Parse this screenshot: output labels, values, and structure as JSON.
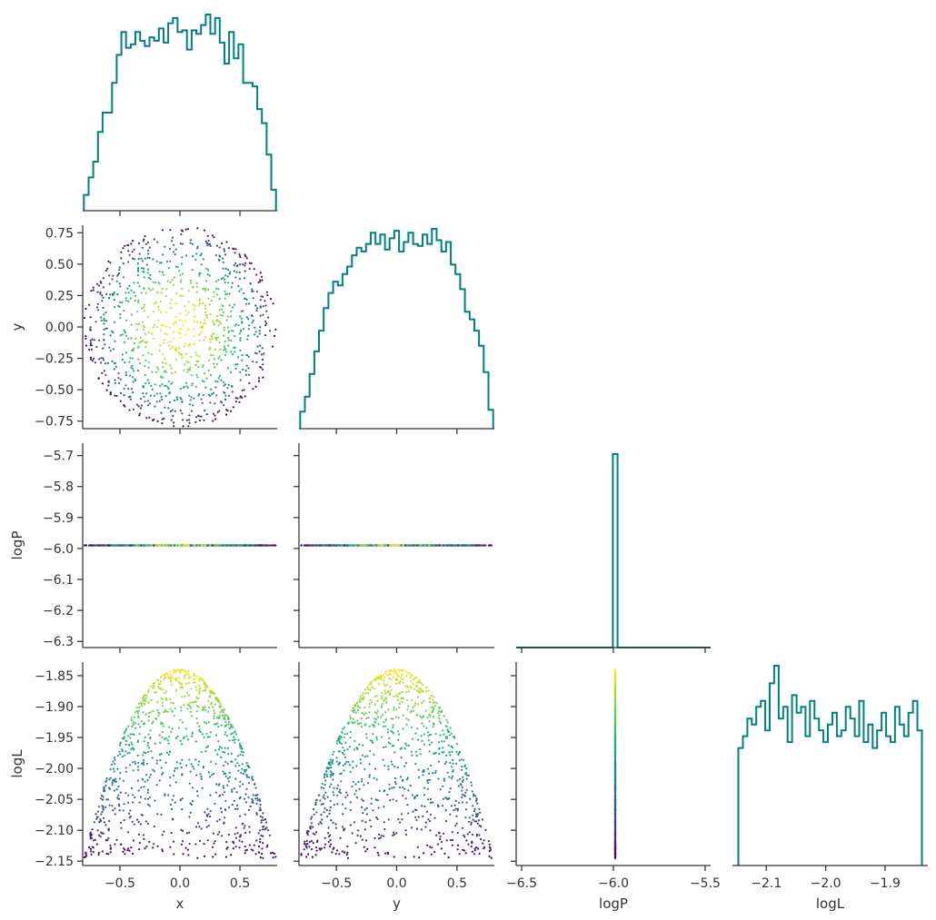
{
  "chart_data": {
    "type": "corner-plot",
    "parameters": [
      "x",
      "y",
      "logP",
      "logL"
    ],
    "n_samples": 1000,
    "colormap": "viridis",
    "color_by": "logL",
    "histogram_color": "#008080",
    "histogram_style": "step",
    "grid": false,
    "axes": {
      "x": {
        "label": "x",
        "range": [
          -0.81,
          0.81
        ],
        "ticks": [
          "−0.5",
          "0.0",
          "0.5"
        ],
        "tick_values": [
          -0.5,
          0.0,
          0.5
        ]
      },
      "y": {
        "label": "y",
        "range": [
          -0.81,
          0.81
        ],
        "ticks": [
          "−0.75",
          "−0.50",
          "−0.25",
          "0.00",
          "0.25",
          "0.50",
          "0.75"
        ],
        "tick_values": [
          -0.75,
          -0.5,
          -0.25,
          0.0,
          0.25,
          0.5,
          0.75
        ],
        "ticks_bottom": [
          "−0.5",
          "0.0",
          "0.5"
        ],
        "tick_values_bottom": [
          -0.5,
          0.0,
          0.5
        ]
      },
      "logP": {
        "label": "logP",
        "range": [
          -6.32,
          -5.66
        ],
        "ticks": [
          "−5.7",
          "−5.8",
          "−5.9",
          "−6.0",
          "−6.1",
          "−6.2",
          "−6.3"
        ],
        "tick_values": [
          -5.7,
          -5.8,
          -5.9,
          -6.0,
          -6.1,
          -6.2,
          -6.3
        ],
        "ticks_bottom": [
          "−6.5",
          "−6.0",
          "−5.5"
        ],
        "tick_values_bottom": [
          -6.5,
          -6.0,
          -5.5
        ],
        "range_bottom": [
          -6.53,
          -5.47
        ],
        "value": -5.99
      },
      "logL": {
        "label": "logL",
        "range": [
          -2.157,
          -1.828
        ],
        "ticks": [
          "−1.85",
          "−1.90",
          "−1.95",
          "−2.00",
          "−2.05",
          "−2.10",
          "−2.15"
        ],
        "tick_values": [
          -1.85,
          -1.9,
          -1.95,
          -2.0,
          -2.05,
          -2.1,
          -2.15
        ],
        "ticks_bottom": [
          "−2.1",
          "−2.0",
          "−1.9"
        ],
        "tick_values_bottom": [
          -2.1,
          -2.0,
          -1.9
        ],
        "range_bottom": [
          -2.157,
          -1.828
        ]
      }
    },
    "histograms": {
      "x": {
        "bins": 41,
        "range": [
          -0.8,
          0.8
        ],
        "counts": [
          9,
          19,
          28,
          45,
          56,
          56,
          73,
          89,
          102,
          93,
          95,
          102,
          97,
          94,
          99,
          97,
          104,
          96,
          107,
          110,
          102,
          103,
          92,
          103,
          101,
          106,
          112,
          101,
          110,
          96,
          84,
          102,
          87,
          95,
          73,
          73,
          71,
          58,
          50,
          32,
          12
        ]
      },
      "y": {
        "bins": 41,
        "range": [
          -0.8,
          0.8
        ],
        "counts": [
          9,
          17,
          29,
          41,
          52,
          64,
          72,
          78,
          76,
          82,
          86,
          92,
          96,
          94,
          98,
          104,
          98,
          103,
          95,
          101,
          105,
          94,
          99,
          104,
          98,
          97,
          103,
          98,
          106,
          100,
          94,
          99,
          87,
          82,
          74,
          62,
          58,
          52,
          44,
          30,
          10
        ]
      },
      "logP": {
        "bins": 41,
        "range": [
          -6.53,
          -5.47
        ],
        "spike_at": -5.99,
        "spike_height": 1000
      },
      "logL": {
        "bins": 41,
        "range": [
          -2.147,
          -1.838
        ],
        "counts": [
          20,
          22,
          25,
          24,
          27,
          28,
          23,
          31,
          34,
          25,
          27,
          21,
          29,
          26,
          27,
          22,
          28,
          25,
          23,
          21,
          24,
          26,
          22,
          23,
          27,
          25,
          22,
          28,
          21,
          24,
          20,
          23,
          26,
          22,
          21,
          27,
          24,
          22,
          26,
          28,
          23
        ]
      }
    }
  }
}
